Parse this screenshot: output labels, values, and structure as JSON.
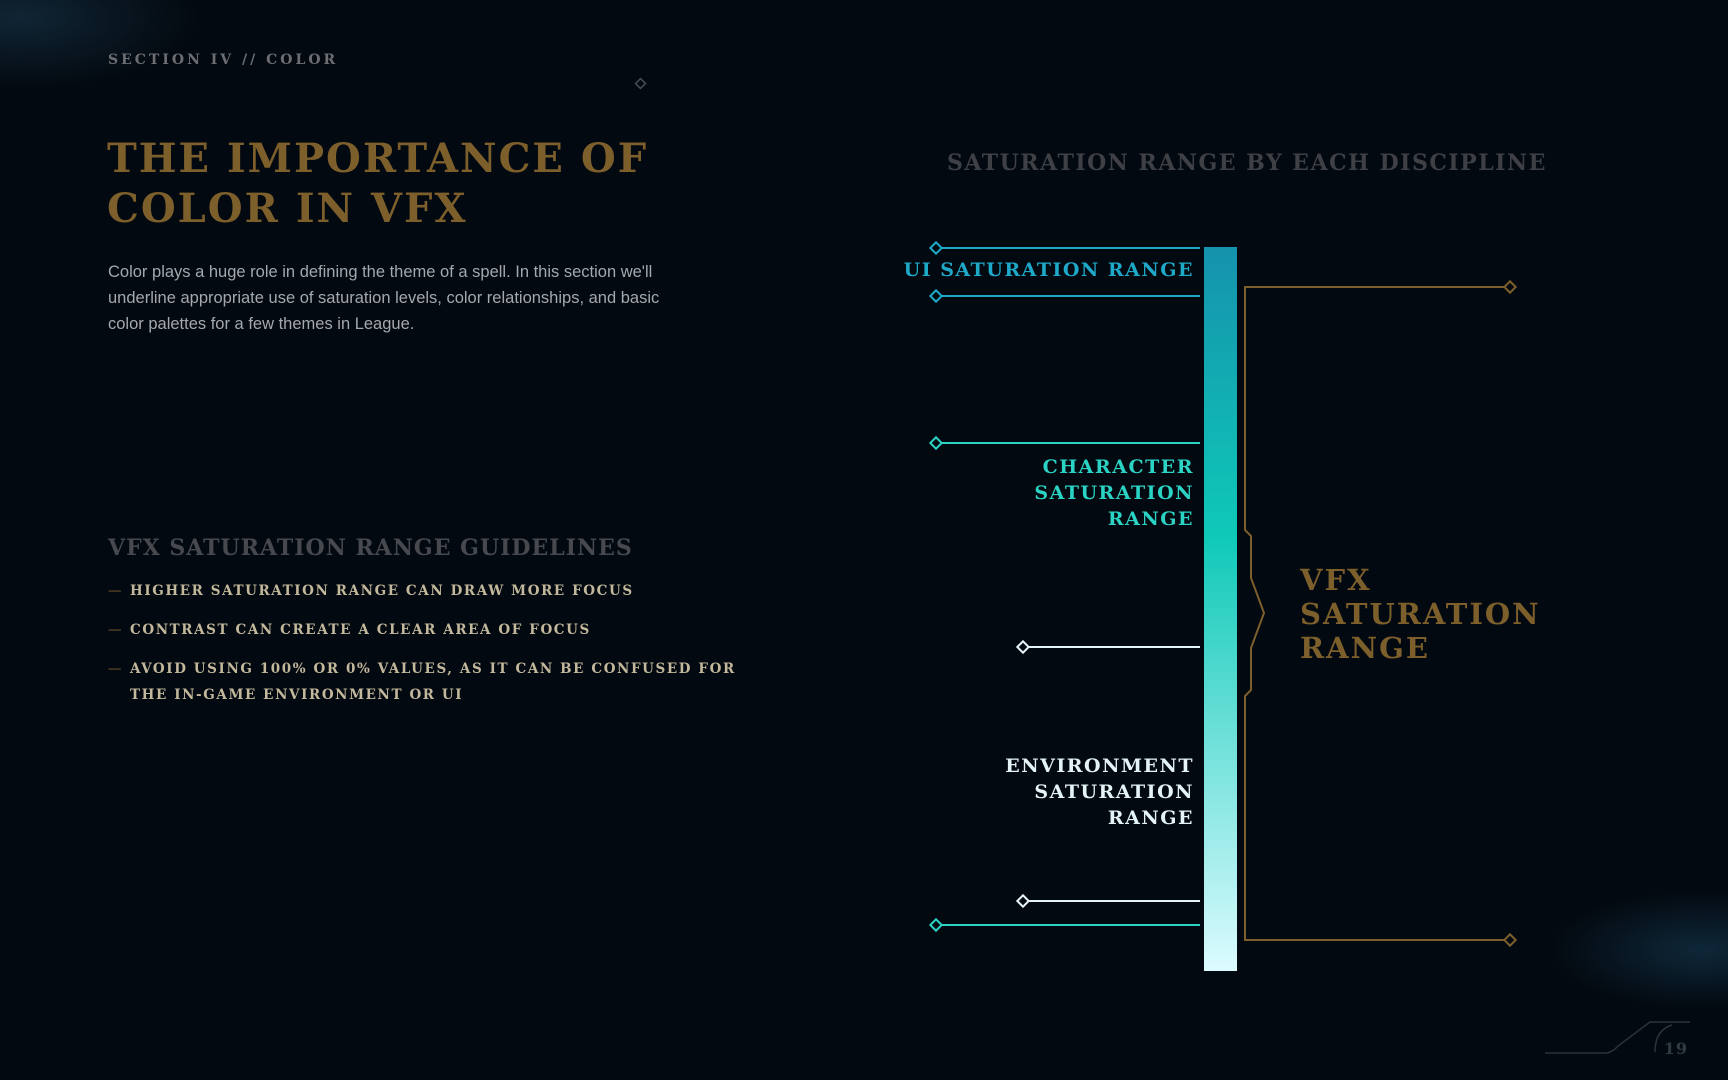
{
  "header": {
    "section_label": "SECTION IV // COLOR"
  },
  "title": {
    "line1": "THE IMPORTANCE OF",
    "line2": "COLOR IN VFX"
  },
  "intro": {
    "text": "Color plays a huge role in defining the theme of a spell. In this section we'll underline appropriate use of saturation levels, color relationships, and basic color palettes for a few themes in League."
  },
  "guidelines": {
    "heading": "VFX SATURATION RANGE GUIDELINES",
    "dash": "—",
    "items": [
      "HIGHER SATURATION RANGE CAN DRAW MORE FOCUS",
      "CONTRAST CAN CREATE A CLEAR AREA OF FOCUS",
      "AVOID USING 100% OR 0% VALUES, AS IT CAN BE CONFUSED FOR THE IN-GAME ENVIRONMENT OR UI"
    ]
  },
  "diagram": {
    "title": "SATURATION RANGE BY EACH DISCIPLINE",
    "ui_label": "UI SATURATION RANGE",
    "character_label": [
      "CHARACTER",
      "SATURATION",
      "RANGE"
    ],
    "environment_label": [
      "ENVIRONMENT",
      "SATURATION",
      "RANGE"
    ],
    "vfx_label": [
      "VFX",
      "SATURATION",
      "RANGE"
    ],
    "colors": {
      "ui": "#1ea9c9",
      "character": "#2bd3c4",
      "environment": "#e3f3f6",
      "vfx": "#7d5f2c",
      "bar_top": "#1592ad",
      "bar_mid": "#0fc9b8",
      "bar_bottom": "#dcfbff"
    }
  },
  "footer": {
    "page_number": "19"
  }
}
